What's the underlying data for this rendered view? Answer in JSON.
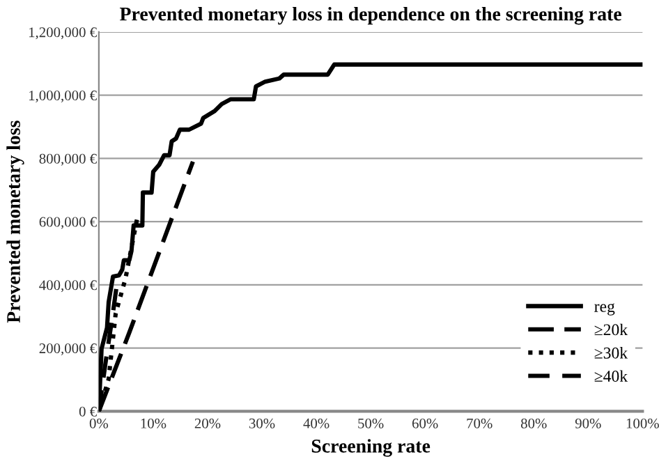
{
  "chart_data": {
    "type": "line",
    "title": "Prevented monetary loss in dependence on the screening rate",
    "xlabel": "Screening rate",
    "ylabel": "Prevented monetary loss",
    "xlim": [
      0,
      100
    ],
    "xticks": [
      {
        "value": 0,
        "label": "0%"
      },
      {
        "value": 10,
        "label": "10%"
      },
      {
        "value": 20,
        "label": "20%"
      },
      {
        "value": 30,
        "label": "30%"
      },
      {
        "value": 40,
        "label": "40%"
      },
      {
        "value": 50,
        "label": "50%"
      },
      {
        "value": 60,
        "label": "60%"
      },
      {
        "value": 70,
        "label": "70%"
      },
      {
        "value": 80,
        "label": "80%"
      },
      {
        "value": 90,
        "label": "90%"
      },
      {
        "value": 100,
        "label": "100%"
      }
    ],
    "ylim": [
      0,
      1200000
    ],
    "yticks": [
      {
        "value": 0,
        "label": "0 €"
      },
      {
        "value": 200000,
        "label": "200,000 €"
      },
      {
        "value": 400000,
        "label": "400,000 €"
      },
      {
        "value": 600000,
        "label": "600,000 €"
      },
      {
        "value": 800000,
        "label": "800,000 €"
      },
      {
        "value": 1000000,
        "label": "1,000,000 €"
      },
      {
        "value": 1200000,
        "label": "1,200,000 €"
      }
    ],
    "grid": "y",
    "legend": "bottom right",
    "marker": "none",
    "series": [
      {
        "name": "reg",
        "color": "#000000",
        "line_style": "solid",
        "x": [
          0,
          0.5,
          1.5,
          1.8,
          2.6,
          3.7,
          4.3,
          4.6,
          5.6,
          6.0,
          6.4,
          8.0,
          8.1,
          9.7,
          10.0,
          11.1,
          12.0,
          13.0,
          13.4,
          14.2,
          14.9,
          16.6,
          18.8,
          19.2,
          21.3,
          22.6,
          24.2,
          28.5,
          28.9,
          30.6,
          33.2,
          34.0,
          42.1,
          43.3,
          100
        ],
        "values": [
          0,
          198000,
          264000,
          345000,
          426000,
          430000,
          448000,
          478000,
          478000,
          507000,
          588000,
          588000,
          692000,
          692000,
          758000,
          780000,
          810000,
          810000,
          854000,
          863000,
          891000,
          891000,
          910000,
          928000,
          950000,
          972000,
          987000,
          987000,
          1028000,
          1043000,
          1053000,
          1065000,
          1065000,
          1097000,
          1097000
        ]
      },
      {
        "name": "≥20k",
        "color": "#000000",
        "line_style": "longdash",
        "x": [
          0,
          5.6,
          17.3
        ],
        "values": [
          0,
          249000,
          790000
        ]
      },
      {
        "name": "≥30k",
        "color": "#000000",
        "line_style": "dotted",
        "x": [
          0,
          1.8,
          3.1,
          4.9,
          7.1
        ],
        "values": [
          0,
          102000,
          310000,
          420000,
          615000
        ]
      },
      {
        "name": "≥40k",
        "color": "#000000",
        "line_style": "dashed",
        "x": [
          0,
          1.2,
          2.5,
          3.3
        ],
        "values": [
          0,
          150000,
          300000,
          400000
        ]
      }
    ]
  }
}
